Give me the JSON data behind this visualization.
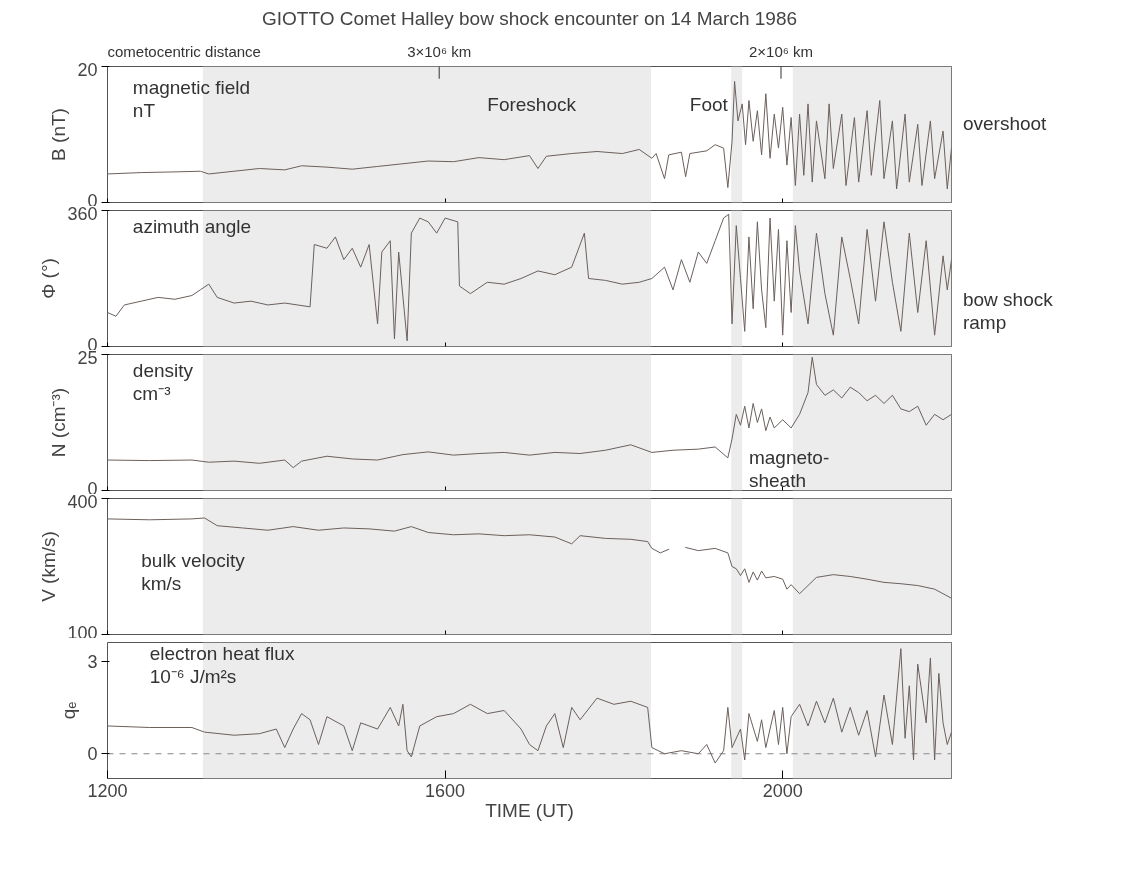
{
  "chart_data": [
    {
      "type": "line",
      "title": "GIOTTO Comet Halley bow shock encounter on 14 March 1986",
      "ylabel": "B (nT)",
      "xlim": [
        1200,
        2200
      ],
      "ylim": [
        0,
        20
      ],
      "yticks": [
        0,
        20
      ],
      "xticks": [
        1200,
        1600,
        2000
      ],
      "tick_labels": "y",
      "grid": false,
      "bands": [
        {
          "axis": "x",
          "from": 1313,
          "to": 1844,
          "color": "#ececec"
        },
        {
          "axis": "x",
          "from": 1939,
          "to": 1952,
          "color": "#ececec"
        },
        {
          "axis": "x",
          "from": 2012,
          "to": 2200,
          "color": "#ececec"
        }
      ],
      "annotations": [
        "magnetic field\nnT",
        "Foreshock",
        "Foot",
        "overshoot",
        "cometocentric distance",
        "3×10⁶ km",
        "2×10⁶ km"
      ],
      "x": [
        1200,
        1240,
        1280,
        1310,
        1320,
        1350,
        1380,
        1410,
        1430,
        1460,
        1490,
        1520,
        1550,
        1580,
        1610,
        1640,
        1670,
        1700,
        1710,
        1720,
        1750,
        1780,
        1810,
        1830,
        1845,
        1850,
        1860,
        1865,
        1880,
        1885,
        1890,
        1910,
        1920,
        1930,
        1935,
        1940,
        1943,
        1947,
        1952,
        1956,
        1960,
        1965,
        1970,
        1975,
        1980,
        1985,
        1990,
        1995,
        2000,
        2005,
        2010,
        2015,
        2020,
        2025,
        2030,
        2035,
        2040,
        2050,
        2055,
        2060,
        2070,
        2075,
        2085,
        2090,
        2100,
        2105,
        2115,
        2120,
        2130,
        2135,
        2145,
        2150,
        2160,
        2165,
        2175,
        2180,
        2190,
        2195,
        2200
      ],
      "series": [
        {
          "color": "#6b605c",
          "values": [
            4.2,
            4.4,
            4.5,
            4.6,
            4.2,
            4.6,
            5.0,
            4.8,
            5.4,
            5.2,
            4.9,
            5.3,
            5.7,
            6.1,
            6.0,
            6.6,
            6.3,
            6.9,
            5.0,
            6.8,
            7.2,
            7.5,
            7.2,
            7.8,
            6.5,
            7.2,
            3.5,
            7.0,
            7.4,
            3.8,
            7.2,
            7.6,
            8.5,
            8.0,
            2.2,
            9.0,
            17.8,
            12.0,
            14.5,
            8.5,
            15.0,
            9.0,
            13.5,
            7.0,
            16.0,
            6.5,
            13.0,
            8.0,
            14.0,
            5.5,
            12.5,
            2.5,
            13.0,
            4.0,
            14.5,
            3.0,
            12.0,
            3.5,
            14.5,
            5.0,
            13.0,
            2.5,
            12.5,
            3.0,
            13.5,
            4.0,
            15.0,
            3.5,
            12.0,
            2.0,
            13.0,
            3.0,
            11.5,
            2.5,
            12.0,
            3.5,
            10.5,
            2.0,
            8.0
          ]
        }
      ]
    },
    {
      "type": "line",
      "ylabel": "Φ (°)",
      "xlim": [
        1200,
        2200
      ],
      "ylim": [
        0,
        360
      ],
      "yticks": [
        0,
        360
      ],
      "xticks": [
        1200,
        1600,
        2000
      ],
      "tick_labels": "y",
      "grid": false,
      "bands": [
        {
          "axis": "x",
          "from": 1313,
          "to": 1844,
          "color": "#ececec"
        },
        {
          "axis": "x",
          "from": 1939,
          "to": 1952,
          "color": "#ececec"
        },
        {
          "axis": "x",
          "from": 2012,
          "to": 2200,
          "color": "#ececec"
        }
      ],
      "annotations": [
        "azimuth angle",
        "bow shock\nramp"
      ],
      "x": [
        1200,
        1210,
        1220,
        1240,
        1260,
        1280,
        1300,
        1310,
        1320,
        1330,
        1350,
        1370,
        1390,
        1410,
        1440,
        1445,
        1460,
        1470,
        1480,
        1490,
        1500,
        1510,
        1520,
        1525,
        1535,
        1540,
        1545,
        1555,
        1560,
        1570,
        1580,
        1590,
        1600,
        1615,
        1617,
        1630,
        1650,
        1670,
        1690,
        1710,
        1730,
        1750,
        1765,
        1770,
        1790,
        1810,
        1830,
        1845,
        1860,
        1870,
        1880,
        1890,
        1900,
        1910,
        1920,
        1930,
        1936,
        1940,
        1945,
        1950,
        1955,
        1960,
        1965,
        1970,
        1975,
        1980,
        1985,
        1990,
        1995,
        2000,
        2005,
        2010,
        2015,
        2020,
        2030,
        2040,
        2050,
        2060,
        2070,
        2080,
        2090,
        2100,
        2110,
        2120,
        2130,
        2140,
        2150,
        2160,
        2170,
        2180,
        2190,
        2195,
        2200
      ],
      "series": [
        {
          "color": "#6b605c",
          "values": [
            90,
            80,
            110,
            120,
            130,
            125,
            135,
            150,
            165,
            130,
            115,
            120,
            110,
            115,
            105,
            270,
            260,
            290,
            230,
            260,
            210,
            270,
            60,
            250,
            280,
            20,
            250,
            15,
            300,
            340,
            330,
            300,
            340,
            330,
            160,
            140,
            170,
            165,
            180,
            200,
            190,
            210,
            300,
            180,
            175,
            165,
            170,
            180,
            210,
            150,
            230,
            170,
            250,
            220,
            280,
            340,
            350,
            60,
            320,
            180,
            40,
            290,
            100,
            330,
            150,
            50,
            340,
            120,
            310,
            30,
            280,
            90,
            320,
            200,
            60,
            300,
            140,
            30,
            290,
            180,
            60,
            310,
            120,
            330,
            170,
            40,
            300,
            90,
            280,
            30,
            240,
            150,
            230
          ]
        }
      ]
    },
    {
      "type": "line",
      "ylabel": "N (cm⁻³)",
      "xlim": [
        1200,
        2200
      ],
      "ylim": [
        0,
        25
      ],
      "yticks": [
        0,
        25
      ],
      "xticks": [
        1200,
        1600,
        2000
      ],
      "tick_labels": "y",
      "grid": false,
      "bands": [
        {
          "axis": "x",
          "from": 1313,
          "to": 1844,
          "color": "#ececec"
        },
        {
          "axis": "x",
          "from": 1939,
          "to": 1952,
          "color": "#ececec"
        },
        {
          "axis": "x",
          "from": 2012,
          "to": 2200,
          "color": "#ececec"
        }
      ],
      "annotations": [
        "density\ncm⁻³",
        "magneto-\nsheath"
      ],
      "x": [
        1200,
        1250,
        1300,
        1320,
        1350,
        1380,
        1410,
        1420,
        1430,
        1460,
        1490,
        1520,
        1550,
        1580,
        1610,
        1640,
        1670,
        1700,
        1730,
        1760,
        1790,
        1820,
        1845,
        1870,
        1900,
        1920,
        1935,
        1940,
        1945,
        1950,
        1955,
        1960,
        1965,
        1970,
        1975,
        1980,
        1985,
        1990,
        2000,
        2010,
        2020,
        2030,
        2035,
        2040,
        2050,
        2060,
        2070,
        2080,
        2090,
        2100,
        2110,
        2120,
        2130,
        2140,
        2150,
        2160,
        2170,
        2180,
        2190,
        2200
      ],
      "series": [
        {
          "color": "#6b605c",
          "values": [
            5.6,
            5.5,
            5.6,
            5.2,
            5.4,
            5.0,
            5.6,
            4.2,
            5.4,
            6.3,
            5.8,
            5.6,
            6.6,
            7.1,
            6.5,
            6.8,
            7.0,
            6.5,
            7.0,
            6.8,
            7.4,
            8.4,
            7.0,
            7.4,
            7.6,
            8.0,
            6.0,
            9.5,
            14.0,
            12.0,
            15.5,
            11.5,
            16.0,
            12.5,
            15.0,
            11.0,
            13.5,
            11.5,
            13.0,
            11.5,
            14.0,
            18.0,
            24.5,
            19.5,
            17.5,
            18.5,
            17.0,
            19.0,
            18.0,
            16.5,
            17.5,
            16.0,
            17.5,
            15.0,
            14.5,
            15.5,
            12.0,
            14.0,
            13.0,
            14.0
          ]
        }
      ]
    },
    {
      "type": "line",
      "ylabel": "V (km/s)",
      "xlim": [
        1200,
        2200
      ],
      "ylim": [
        100,
        400
      ],
      "yticks": [
        100,
        400
      ],
      "xticks": [
        1200,
        1600,
        2000
      ],
      "tick_labels": "y",
      "grid": false,
      "bands": [
        {
          "axis": "x",
          "from": 1313,
          "to": 1844,
          "color": "#ececec"
        },
        {
          "axis": "x",
          "from": 1939,
          "to": 1952,
          "color": "#ececec"
        },
        {
          "axis": "x",
          "from": 2012,
          "to": 2200,
          "color": "#ececec"
        }
      ],
      "annotations": [
        "bulk velocity\nkm/s"
      ],
      "x": [
        1200,
        1250,
        1300,
        1315,
        1330,
        1360,
        1390,
        1420,
        1450,
        1480,
        1510,
        1540,
        1560,
        1580,
        1610,
        1640,
        1670,
        1700,
        1730,
        1750,
        1760,
        1790,
        1820,
        1840,
        1845,
        1855,
        1865,
        1870,
        1880,
        1885,
        1900,
        1920,
        1935,
        1940,
        1945,
        1950,
        1955,
        1960,
        1965,
        1970,
        1975,
        1980,
        1990,
        2000,
        2005,
        2010,
        2020,
        2040,
        2060,
        2080,
        2100,
        2120,
        2140,
        2160,
        2180,
        2200
      ],
      "series": [
        {
          "color": "#6b605c",
          "values": [
            355,
            353,
            355,
            357,
            340,
            335,
            330,
            338,
            330,
            335,
            333,
            328,
            338,
            325,
            320,
            322,
            318,
            320,
            315,
            300,
            318,
            312,
            310,
            305,
            290,
            280,
            288,
            null,
            null,
            292,
            285,
            290,
            280,
            250,
            245,
            230,
            245,
            215,
            238,
            220,
            240,
            225,
            228,
            222,
            200,
            210,
            190,
            226,
            232,
            228,
            222,
            215,
            212,
            208,
            200,
            180
          ]
        }
      ]
    },
    {
      "type": "line",
      "ylabel": "qₑ",
      "xlabel": "TIME (UT)",
      "xlim": [
        1200,
        2200
      ],
      "ylim": [
        -0.8,
        3.6
      ],
      "yticks": [
        0,
        3
      ],
      "grid": false,
      "xticks": [
        1200,
        1600,
        2000
      ],
      "ref_lines": [
        {
          "axis": "y",
          "value": 0,
          "color": "#888888",
          "line_style": "dashed"
        }
      ],
      "bands": [
        {
          "axis": "x",
          "from": 1313,
          "to": 1844,
          "color": "#ececec"
        },
        {
          "axis": "x",
          "from": 1939,
          "to": 1952,
          "color": "#ececec"
        },
        {
          "axis": "x",
          "from": 2012,
          "to": 2200,
          "color": "#ececec"
        }
      ],
      "annotations": [
        "electron heat flux\n10⁻⁶ J/m²s"
      ],
      "x": [
        1200,
        1250,
        1300,
        1315,
        1350,
        1380,
        1400,
        1410,
        1420,
        1430,
        1440,
        1450,
        1460,
        1480,
        1490,
        1500,
        1520,
        1535,
        1545,
        1550,
        1555,
        1560,
        1570,
        1590,
        1610,
        1630,
        1650,
        1670,
        1690,
        1700,
        1710,
        1720,
        1730,
        1740,
        1750,
        1760,
        1780,
        1800,
        1820,
        1840,
        1845,
        1860,
        1880,
        1900,
        1910,
        1920,
        1930,
        1935,
        1940,
        1950,
        1955,
        1960,
        1970,
        1975,
        1980,
        1990,
        1995,
        2000,
        2005,
        2010,
        2020,
        2030,
        2040,
        2050,
        2060,
        2070,
        2080,
        2090,
        2100,
        2110,
        2120,
        2130,
        2140,
        2145,
        2150,
        2155,
        2160,
        2170,
        2175,
        2180,
        2185,
        2190,
        2195,
        2200
      ],
      "series": [
        {
          "color": "#6b605c",
          "values": [
            0.9,
            0.85,
            0.85,
            0.7,
            0.6,
            0.65,
            0.8,
            0.2,
            0.8,
            1.3,
            1.1,
            0.3,
            1.2,
            0.9,
            0.1,
            1.0,
            0.8,
            1.5,
            0.9,
            1.6,
            0.1,
            -0.1,
            0.9,
            1.2,
            1.3,
            1.6,
            1.3,
            1.4,
            0.8,
            0.3,
            0.1,
            0.9,
            1.3,
            0.2,
            1.5,
            1.1,
            1.8,
            1.6,
            1.7,
            1.5,
            0.2,
            0.0,
            0.1,
            0.0,
            0.3,
            -0.3,
            0.1,
            1.5,
            0.2,
            0.8,
            -0.2,
            1.3,
            0.4,
            1.1,
            0.2,
            1.4,
            0.3,
            1.5,
            0.0,
            1.2,
            1.6,
            0.9,
            1.7,
            1.0,
            1.8,
            0.7,
            1.5,
            0.6,
            1.4,
            -0.1,
            1.9,
            0.3,
            3.4,
            0.5,
            2.2,
            -0.2,
            2.9,
            1.0,
            3.1,
            -0.2,
            2.6,
            1.0,
            0.3,
            0.7
          ]
        }
      ]
    }
  ]
}
